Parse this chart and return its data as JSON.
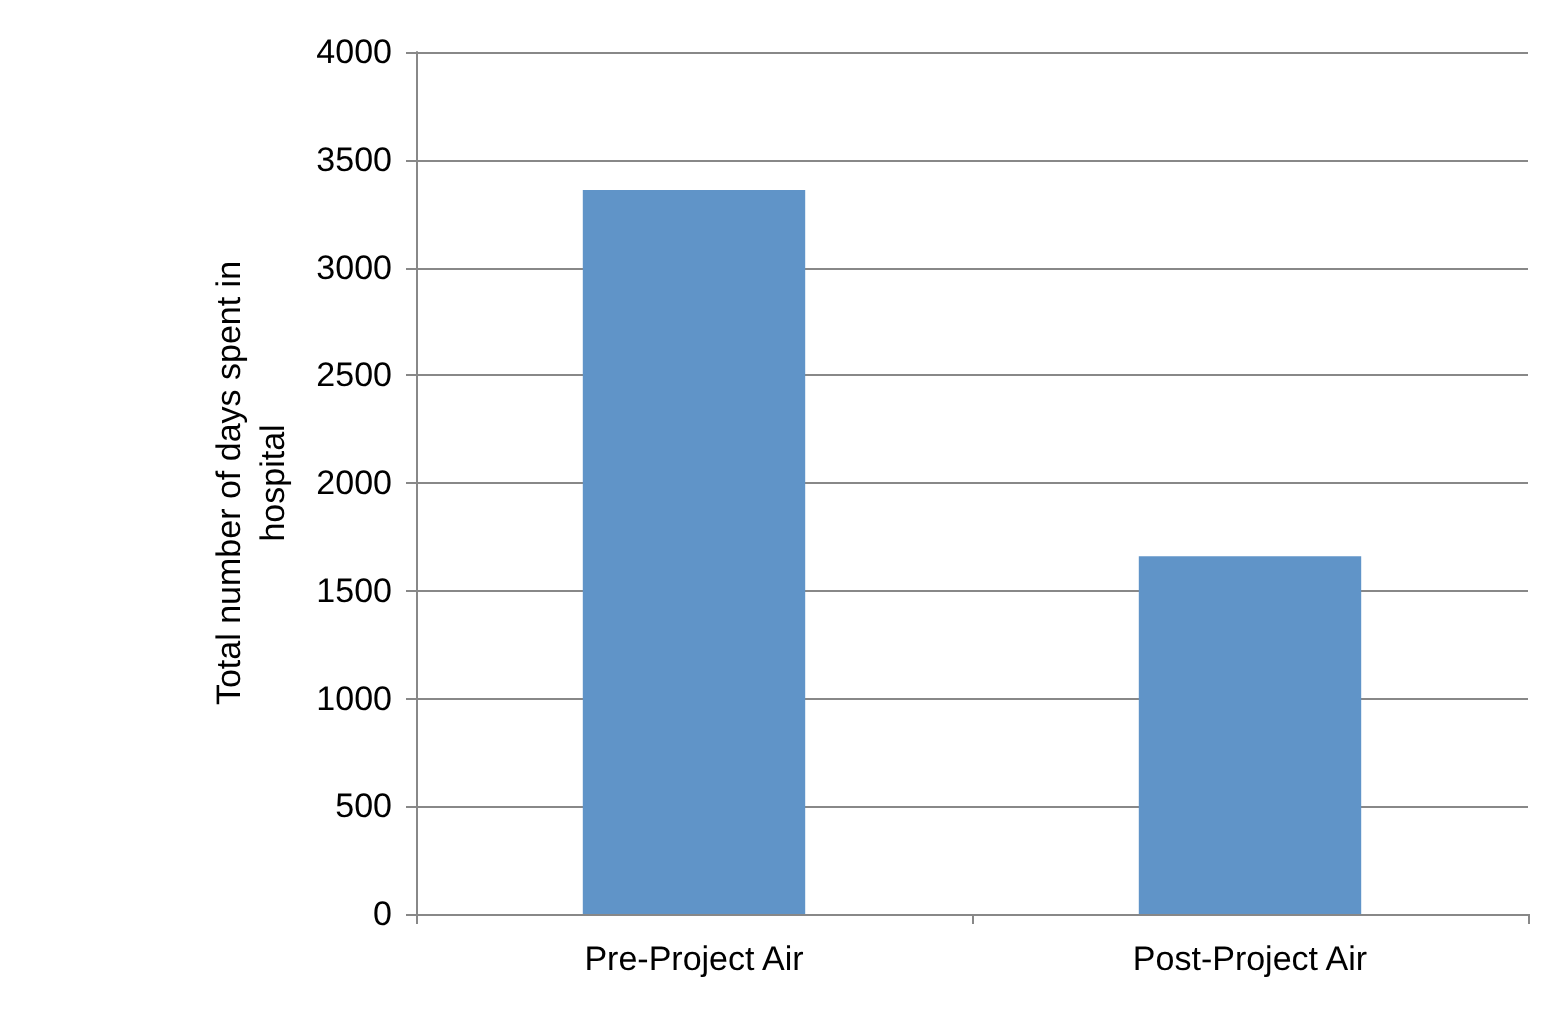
{
  "chart_data": {
    "type": "bar",
    "ylabel": "Total number of days spent in\nhospital",
    "categories": [
      "Pre-Project Air",
      "Post-Project Air"
    ],
    "values": [
      3360,
      1660
    ],
    "color": "#6094c8",
    "ylim": [
      0,
      4000
    ],
    "yticks": [
      0,
      500,
      1000,
      1500,
      2000,
      2500,
      3000,
      3500,
      4000
    ],
    "grid": "y"
  }
}
